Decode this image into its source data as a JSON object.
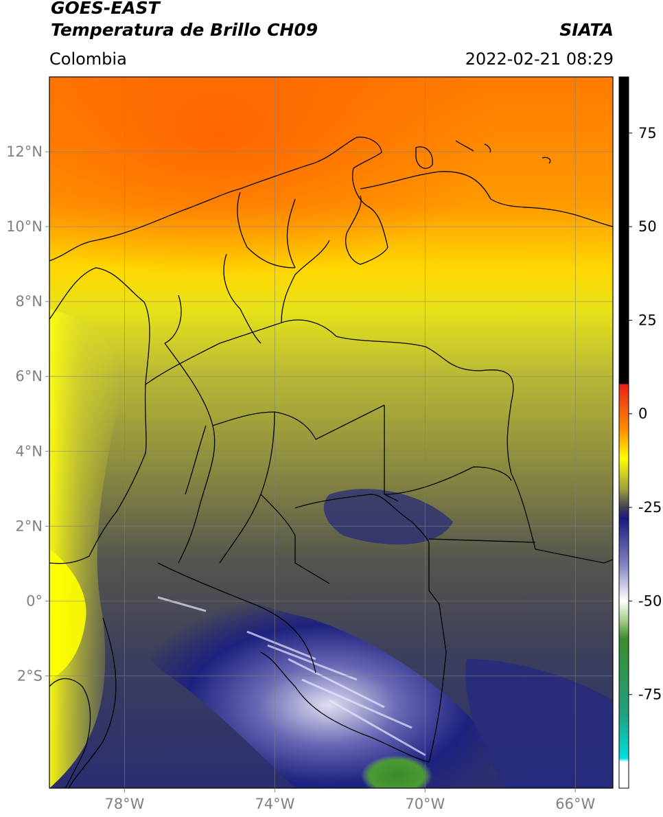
{
  "header": {
    "title_line1": "GOES-EAST",
    "title_line2": "Temperatura de Brillo CH09",
    "brand": "SIATA",
    "region": "Colombia",
    "datetime": "2022-02-21 08:29"
  },
  "map": {
    "lon_range": [
      -80,
      -65
    ],
    "lat_range": [
      -5,
      14
    ],
    "lat_ticks": [
      {
        "value": 12,
        "label": "12°N"
      },
      {
        "value": 10,
        "label": "10°N"
      },
      {
        "value": 8,
        "label": "8°N"
      },
      {
        "value": 6,
        "label": "6°N"
      },
      {
        "value": 4,
        "label": "4°N"
      },
      {
        "value": 2,
        "label": "2°N"
      },
      {
        "value": 0,
        "label": "0°"
      },
      {
        "value": -2,
        "label": "2°S"
      }
    ],
    "lon_ticks": [
      {
        "value": -78,
        "label": "78°W"
      },
      {
        "value": -74,
        "label": "74°W"
      },
      {
        "value": -70,
        "label": "70°W"
      },
      {
        "value": -66,
        "label": "66°W"
      }
    ],
    "gridlines": true
  },
  "colorbar": {
    "range": [
      -100,
      90
    ],
    "ticks": [
      {
        "value": 75,
        "label": "75"
      },
      {
        "value": 50,
        "label": "50"
      },
      {
        "value": 25,
        "label": "25"
      },
      {
        "value": 0,
        "label": "0"
      },
      {
        "value": -25,
        "label": "-25"
      },
      {
        "value": -50,
        "label": "-50"
      },
      {
        "value": -75,
        "label": "-75"
      }
    ],
    "colors": {
      "black": "#000000",
      "red": "#e8201a",
      "orange": "#ff8c00",
      "yellow": "#ffff00",
      "olive": "#a0a040",
      "gray": "#404050",
      "navy": "#1a1a80",
      "white": "#ffffff",
      "green": "#3c8c2a",
      "cyan": "#00e0e0"
    }
  }
}
